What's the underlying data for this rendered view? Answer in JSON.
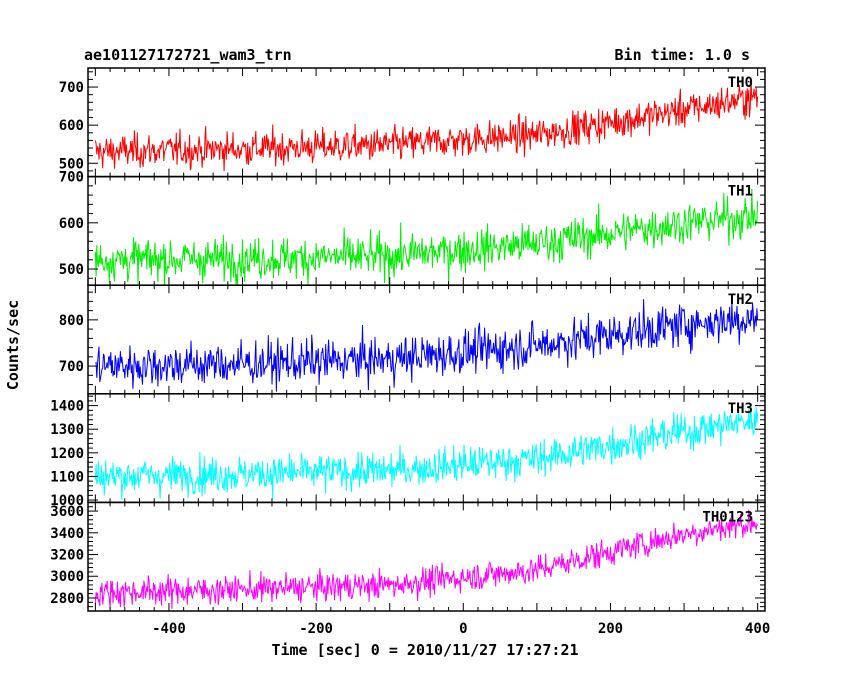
{
  "header": {
    "title": "ae101127172721_wam3_trn",
    "bin_time": "Bin time: 1.0 s"
  },
  "chart_data": {
    "type": "line",
    "title": "ae101127172721_wam3_trn",
    "subtitle": "Bin time: 1.0 s",
    "xlabel": "Time [sec] 0 = 2010/11/27 17:27:21",
    "ylabel": "Counts/sec",
    "xlim": [
      -510,
      410
    ],
    "x_ticks": [
      -400,
      -200,
      0,
      200,
      400
    ],
    "x_range_data": [
      -500,
      400
    ],
    "bin_time_s": 1.0,
    "grid": false,
    "panels": [
      {
        "name": "TH0",
        "color": "#ff0000",
        "ylim": [
          465,
          750
        ],
        "y_ticks": [
          500,
          600,
          700
        ],
        "trend_x": [
          -500,
          -300,
          -100,
          100,
          300,
          400
        ],
        "trend_y": [
          530,
          538,
          548,
          575,
          640,
          675
        ],
        "noise_amp": 38
      },
      {
        "name": "TH1",
        "color": "#00ee00",
        "ylim": [
          465,
          700
        ],
        "y_ticks": [
          500,
          600,
          700
        ],
        "trend_x": [
          -500,
          -300,
          -100,
          100,
          300,
          400
        ],
        "trend_y": [
          520,
          522,
          528,
          555,
          600,
          615
        ],
        "noise_amp": 38
      },
      {
        "name": "TH2",
        "color": "#0000ff",
        "ylim": [
          640,
          875
        ],
        "y_ticks": [
          700,
          800
        ],
        "trend_x": [
          -500,
          -300,
          -100,
          100,
          300,
          400
        ],
        "trend_y": [
          700,
          705,
          715,
          745,
          790,
          805
        ],
        "noise_amp": 40
      },
      {
        "name": "TH3",
        "color": "#00ffff",
        "ylim": [
          990,
          1450
        ],
        "y_ticks": [
          1000,
          1100,
          1200,
          1300,
          1400
        ],
        "trend_x": [
          -500,
          -300,
          -100,
          100,
          300,
          400
        ],
        "trend_y": [
          1100,
          1110,
          1125,
          1175,
          1290,
          1340
        ],
        "noise_amp": 65
      },
      {
        "name": "TH0123",
        "color": "#ff00ff",
        "ylim": [
          2680,
          3680
        ],
        "y_ticks": [
          2800,
          3000,
          3200,
          3400,
          3600
        ],
        "trend_x": [
          -500,
          -300,
          -100,
          100,
          300,
          400
        ],
        "trend_y": [
          2850,
          2880,
          2920,
          3060,
          3390,
          3500
        ],
        "noise_amp": 110
      }
    ]
  }
}
